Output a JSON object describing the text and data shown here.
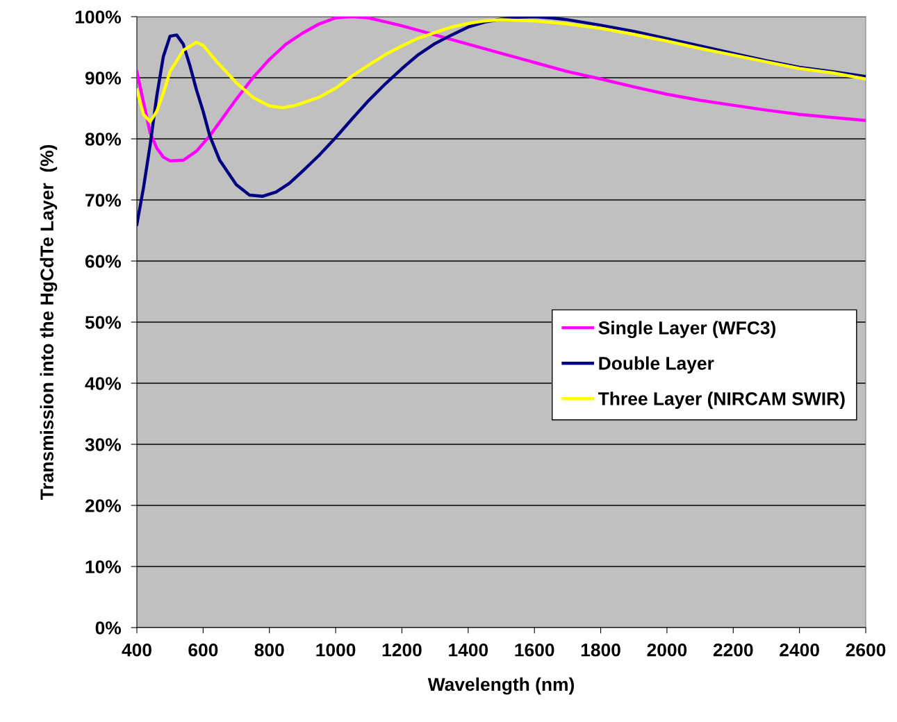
{
  "chart_data": {
    "type": "line",
    "xlabel": "Wavelength (nm)",
    "ylabel": "Transmission into the HgCdTe Layer  (%)",
    "xlim": [
      400,
      2600
    ],
    "xticks": [
      400,
      600,
      800,
      1000,
      1200,
      1400,
      1600,
      1800,
      2000,
      2200,
      2400,
      2600
    ],
    "ylim": [
      0,
      100
    ],
    "yticks": [
      {
        "value": 0,
        "label": "0%"
      },
      {
        "value": 10,
        "label": "10%"
      },
      {
        "value": 20,
        "label": "20%"
      },
      {
        "value": 30,
        "label": "30%"
      },
      {
        "value": 40,
        "label": "40%"
      },
      {
        "value": 50,
        "label": "50%"
      },
      {
        "value": 60,
        "label": "60%"
      },
      {
        "value": 70,
        "label": "70%"
      },
      {
        "value": 80,
        "label": "80%"
      },
      {
        "value": 90,
        "label": "90%"
      },
      {
        "value": 100,
        "label": "100%"
      }
    ],
    "grid": "y",
    "legend": "right",
    "marker": "none",
    "line_style": "solid",
    "series": [
      {
        "name": "Single Layer (WFC3)",
        "color": "#ff00ff",
        "x": [
          400,
          420,
          440,
          460,
          480,
          500,
          540,
          580,
          620,
          660,
          700,
          750,
          800,
          850,
          900,
          950,
          1000,
          1050,
          1100,
          1200,
          1300,
          1400,
          1500,
          1600,
          1700,
          1800,
          1900,
          2000,
          2100,
          2200,
          2300,
          2400,
          2500,
          2600
        ],
        "values": [
          91,
          86,
          81,
          78.5,
          77,
          76.4,
          76.5,
          78,
          80.5,
          83.5,
          86.5,
          90,
          93,
          95.5,
          97.3,
          98.8,
          99.8,
          100,
          99.8,
          98.5,
          97,
          95.5,
          94,
          92.5,
          91,
          89.8,
          88.5,
          87.3,
          86.3,
          85.5,
          84.7,
          84,
          83.5,
          83
        ]
      },
      {
        "name": "Double Layer",
        "color": "#000080",
        "x": [
          400,
          420,
          440,
          460,
          480,
          500,
          520,
          540,
          560,
          580,
          600,
          620,
          650,
          700,
          740,
          780,
          820,
          860,
          900,
          950,
          1000,
          1050,
          1100,
          1150,
          1200,
          1250,
          1300,
          1350,
          1400,
          1450,
          1500,
          1550,
          1600,
          1650,
          1700,
          1800,
          1900,
          2000,
          2100,
          2200,
          2300,
          2400,
          2500,
          2600
        ],
        "values": [
          66,
          72,
          79,
          87,
          93.5,
          96.8,
          97,
          95.5,
          92,
          88,
          84.5,
          80.5,
          76.5,
          72.5,
          70.8,
          70.6,
          71.3,
          72.7,
          74.7,
          77.3,
          80.2,
          83.3,
          86.3,
          89,
          91.5,
          93.8,
          95.6,
          97,
          98.3,
          99.1,
          99.6,
          99.9,
          100,
          99.8,
          99.5,
          98.6,
          97.6,
          96.4,
          95.2,
          94,
          92.8,
          91.7,
          91,
          90.2
        ]
      },
      {
        "name": "Three Layer (NIRCAM SWIR)",
        "color": "#ffff00",
        "x": [
          400,
          420,
          440,
          460,
          480,
          500,
          540,
          580,
          600,
          640,
          700,
          750,
          800,
          840,
          880,
          950,
          1000,
          1050,
          1100,
          1150,
          1200,
          1250,
          1300,
          1350,
          1400,
          1450,
          1500,
          1600,
          1700,
          1800,
          1900,
          2000,
          2100,
          2200,
          2300,
          2400,
          2500,
          2600
        ],
        "values": [
          88,
          84,
          82.8,
          84.5,
          87.5,
          91,
          94.5,
          95.8,
          95.3,
          92.7,
          89.2,
          86.8,
          85.4,
          85.1,
          85.5,
          86.8,
          88.3,
          90.3,
          92.1,
          93.8,
          95.2,
          96.5,
          97.4,
          98.3,
          98.9,
          99.3,
          99.5,
          99.3,
          98.8,
          98.1,
          97.1,
          96.0,
          94.8,
          93.7,
          92.6,
          91.5,
          90.8,
          89.8
        ]
      }
    ]
  }
}
